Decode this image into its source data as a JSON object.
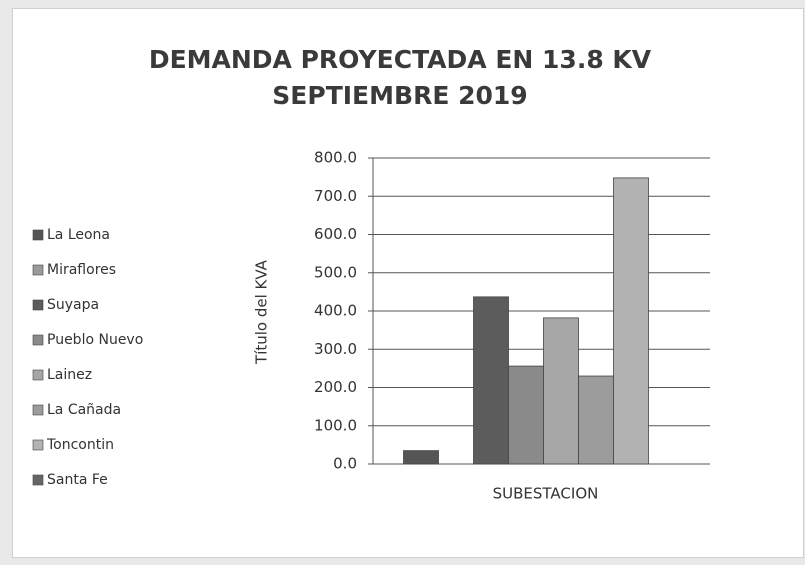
{
  "chart_data": {
    "type": "bar",
    "title": "DEMANDA PROYECTADA EN 13.8 KV SEPTIEMBRE 2019",
    "y_label": "Título del KVA",
    "categories": [
      "SUBESTACION"
    ],
    "series": [
      {
        "name": "La Leona",
        "color": "#555555",
        "values": [
          35
        ]
      },
      {
        "name": "Miraflores",
        "color": "#9a9a9a",
        "values": [
          0
        ]
      },
      {
        "name": "Suyapa",
        "color": "#5c5c5c",
        "values": [
          437
        ]
      },
      {
        "name": "Pueblo Nuevo",
        "color": "#8a8a8a",
        "values": [
          256
        ]
      },
      {
        "name": "Lainez",
        "color": "#a6a6a6",
        "values": [
          382
        ]
      },
      {
        "name": "La Cañada",
        "color": "#9c9c9c",
        "values": [
          230
        ]
      },
      {
        "name": "Toncontin",
        "color": "#b2b2b2",
        "values": [
          748
        ]
      },
      {
        "name": "Santa Fe",
        "color": "#666666",
        "values": [
          0
        ]
      }
    ],
    "ylim": [
      0,
      800
    ],
    "yticks": [
      {
        "value": 0,
        "label": "0.0"
      },
      {
        "value": 100,
        "label": "100.0"
      },
      {
        "value": 200,
        "label": "200.0"
      },
      {
        "value": 300,
        "label": "300.0"
      },
      {
        "value": 400,
        "label": "400.0"
      },
      {
        "value": 500,
        "label": "500.0"
      },
      {
        "value": 600,
        "label": "600.0"
      },
      {
        "value": 700,
        "label": "700.0"
      },
      {
        "value": 800,
        "label": "800.0"
      }
    ],
    "grid": true,
    "legend": "left"
  }
}
